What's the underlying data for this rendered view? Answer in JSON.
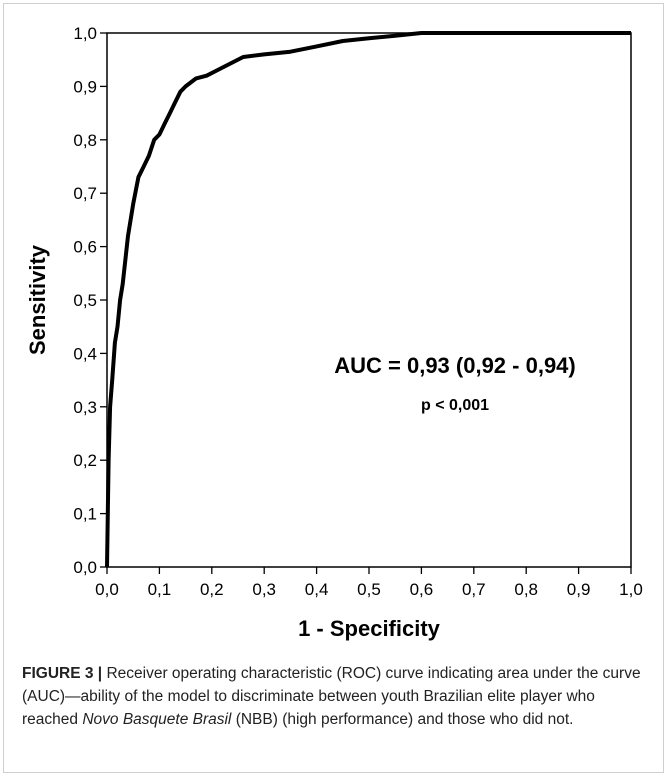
{
  "chart_data": {
    "type": "line",
    "xlabel": "1 - Specificity",
    "ylabel": "Sensitivity",
    "xlim": [
      0,
      1
    ],
    "ylim": [
      0,
      1
    ],
    "xticks": [
      "0,0",
      "0,1",
      "0,2",
      "0,3",
      "0,4",
      "0,5",
      "0,6",
      "0,7",
      "0,8",
      "0,9",
      "1,0"
    ],
    "yticks": [
      "0,0",
      "0,1",
      "0,2",
      "0,3",
      "0,4",
      "0,5",
      "0,6",
      "0,7",
      "0,8",
      "0,9",
      "1,0"
    ],
    "grid": false,
    "series": [
      {
        "x": [
          0.0,
          0.003,
          0.006,
          0.01,
          0.015,
          0.02,
          0.025,
          0.03,
          0.04,
          0.05,
          0.06,
          0.07,
          0.08,
          0.09,
          0.1,
          0.11,
          0.12,
          0.13,
          0.14,
          0.15,
          0.17,
          0.19,
          0.21,
          0.23,
          0.26,
          0.3,
          0.35,
          0.4,
          0.45,
          0.5,
          0.55,
          0.6,
          0.7,
          0.8,
          0.9,
          1.0
        ],
        "y": [
          0.0,
          0.2,
          0.3,
          0.35,
          0.42,
          0.45,
          0.5,
          0.53,
          0.62,
          0.68,
          0.73,
          0.75,
          0.77,
          0.8,
          0.81,
          0.83,
          0.85,
          0.87,
          0.89,
          0.9,
          0.915,
          0.92,
          0.93,
          0.94,
          0.955,
          0.96,
          0.965,
          0.975,
          0.985,
          0.99,
          0.995,
          1.0,
          1.0,
          1.0,
          1.0,
          1.0
        ]
      }
    ],
    "annotation": {
      "main": "AUC = 0,93 (0,92 - 0,94)",
      "sub": "p < 0,001"
    }
  },
  "caption": {
    "lead": "FIGURE 3 |",
    "text1": " Receiver operating characteristic (ROC) curve indicating area under the curve (AUC)—ability of the model to discriminate between youth Brazilian elite player who reached ",
    "italic": "Novo Basquete Brasil",
    "text2": " (NBB) (high performance) and those who did not."
  }
}
